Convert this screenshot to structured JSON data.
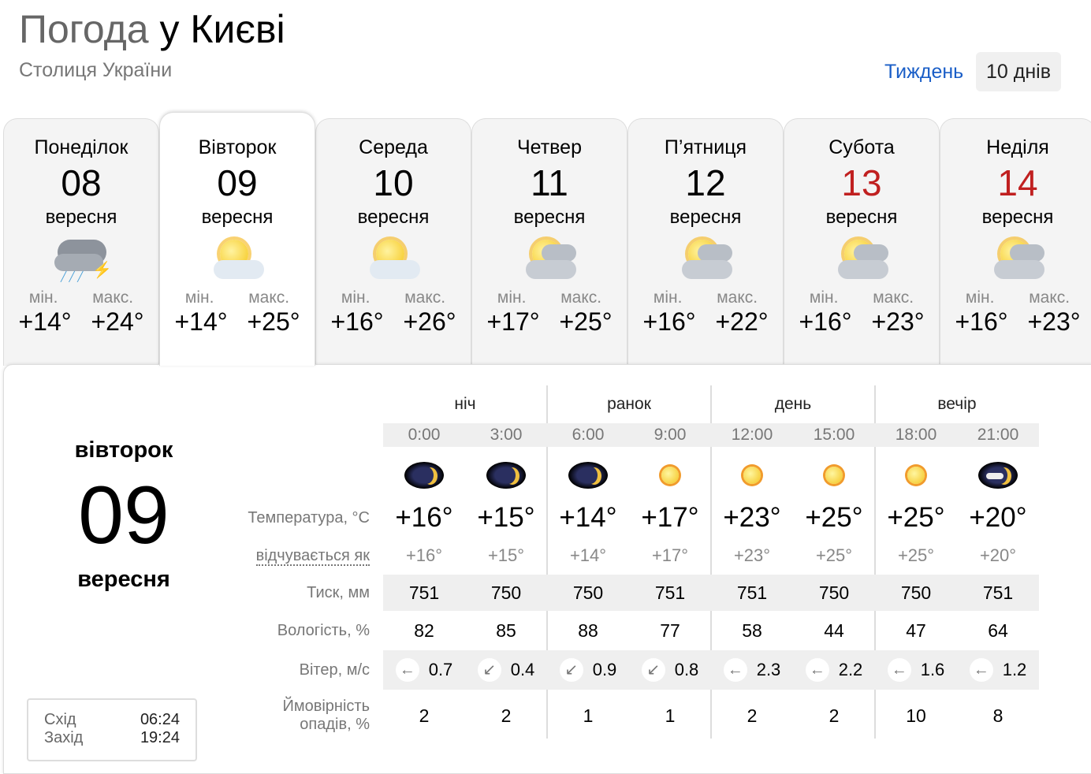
{
  "header": {
    "title_part1": "Погода",
    "title_part2": "у Києві",
    "subtitle": "Столиця України",
    "tab_week": "Тиждень",
    "tab_10days": "10 днів"
  },
  "days": [
    {
      "name": "Понеділок",
      "date": "08",
      "month": "вересня",
      "icon": "cloud-rain-thunder-icon",
      "min_label": "мін.",
      "max_label": "макс.",
      "min": "+14°",
      "max": "+24°",
      "weekend": false
    },
    {
      "name": "Вівторок",
      "date": "09",
      "month": "вересня",
      "icon": "sun-cloud-icon",
      "min_label": "мін.",
      "max_label": "макс.",
      "min": "+14°",
      "max": "+25°",
      "weekend": false,
      "selected": true
    },
    {
      "name": "Середа",
      "date": "10",
      "month": "вересня",
      "icon": "sun-cloud-icon",
      "min_label": "мін.",
      "max_label": "макс.",
      "min": "+16°",
      "max": "+26°",
      "weekend": false
    },
    {
      "name": "Четвер",
      "date": "11",
      "month": "вересня",
      "icon": "sun-clouds-icon",
      "min_label": "мін.",
      "max_label": "макс.",
      "min": "+17°",
      "max": "+25°",
      "weekend": false
    },
    {
      "name": "П’ятниця",
      "date": "12",
      "month": "вересня",
      "icon": "sun-clouds-icon",
      "min_label": "мін.",
      "max_label": "макс.",
      "min": "+16°",
      "max": "+22°",
      "weekend": false
    },
    {
      "name": "Субота",
      "date": "13",
      "month": "вересня",
      "icon": "sun-clouds-icon",
      "min_label": "мін.",
      "max_label": "макс.",
      "min": "+16°",
      "max": "+23°",
      "weekend": true
    },
    {
      "name": "Неділя",
      "date": "14",
      "month": "вересня",
      "icon": "sun-clouds-icon",
      "min_label": "мін.",
      "max_label": "макс.",
      "min": "+16°",
      "max": "+23°",
      "weekend": true
    }
  ],
  "accent_colors": {
    "link": "#1a5ec7",
    "weekend": "#c02020"
  },
  "detail": {
    "weekday": "вівторок",
    "date": "09",
    "month": "вересня",
    "sunrise_label": "Схід",
    "sunrise": "06:24",
    "sunset_label": "Захід",
    "sunset": "19:24",
    "periods": [
      "ніч",
      "ранок",
      "день",
      "вечір"
    ],
    "times": [
      "0:00",
      "3:00",
      "6:00",
      "9:00",
      "12:00",
      "15:00",
      "18:00",
      "21:00"
    ],
    "icons": [
      "moon-icon",
      "moon-icon",
      "moon-icon",
      "sun-icon",
      "sun-icon",
      "sun-icon",
      "sun-icon",
      "moon-cloud-icon"
    ],
    "labels": {
      "temp": "Температура, °C",
      "feels": "відчувається як",
      "pressure": "Тиск, мм",
      "humidity": "Вологість, %",
      "wind": "Вітер, м/с",
      "precip1": "Ймовірність",
      "precip2": "опадів, %"
    },
    "temp": [
      "+16°",
      "+15°",
      "+14°",
      "+17°",
      "+23°",
      "+25°",
      "+25°",
      "+20°"
    ],
    "feels": [
      "+16°",
      "+15°",
      "+14°",
      "+17°",
      "+23°",
      "+25°",
      "+25°",
      "+20°"
    ],
    "pressure": [
      "751",
      "750",
      "750",
      "751",
      "751",
      "750",
      "750",
      "751"
    ],
    "humidity": [
      "82",
      "85",
      "88",
      "77",
      "58",
      "44",
      "47",
      "64"
    ],
    "wind_dir": [
      "←",
      "↙",
      "↙",
      "↙",
      "←",
      "←",
      "←",
      "←"
    ],
    "wind": [
      "0.7",
      "0.4",
      "0.9",
      "0.8",
      "2.3",
      "2.2",
      "1.6",
      "1.2"
    ],
    "precip": [
      "2",
      "2",
      "1",
      "1",
      "2",
      "2",
      "10",
      "8"
    ]
  }
}
